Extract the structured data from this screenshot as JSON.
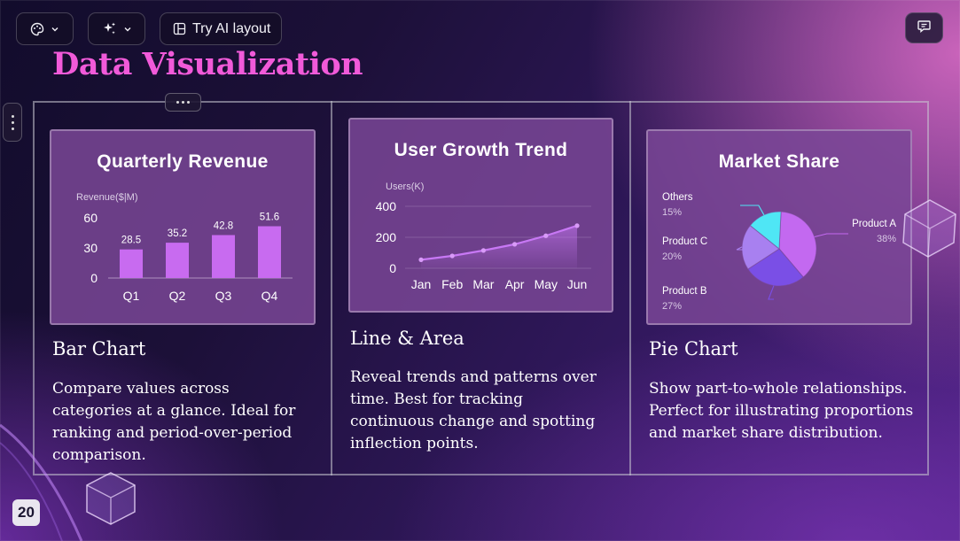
{
  "toolbar": {
    "theme_icon": "palette-icon",
    "ai_icon": "sparkles-icon",
    "layout_label": "Try AI layout",
    "layout_icon": "layout-icon"
  },
  "comment_icon": "comment-icon",
  "slide": {
    "title": "Data Visualization",
    "page_number": "20",
    "columns": [
      {
        "heading": "Bar Chart",
        "text": "Compare values across categories at a glance. Ideal for ranking and period-over-period comparison."
      },
      {
        "heading": "Line & Area",
        "text": "Reveal trends and patterns over time. Best for tracking continuous change and spotting inflection points."
      },
      {
        "heading": "Pie Chart",
        "text": "Show part-to-whole relationships. Perfect for illustrating proportions and market share distribution."
      }
    ]
  },
  "colors": {
    "title": "#f15ad9",
    "bar": "#c86bf0",
    "line": "#c878f5",
    "pie": [
      "#c369f0",
      "#7a4fe6",
      "#a880f0",
      "#4fe6f5"
    ]
  },
  "chart_data": [
    {
      "type": "bar",
      "title": "Quarterly Revenue",
      "ylabel": "Revenue($|M)",
      "categories": [
        "Q1",
        "Q2",
        "Q3",
        "Q4"
      ],
      "values": [
        28.5,
        35.2,
        42.8,
        51.6
      ],
      "yticks": [
        0,
        30,
        60
      ],
      "ylim": [
        0,
        60
      ]
    },
    {
      "type": "area",
      "title": "User Growth Trend",
      "ylabel": "Users(K)",
      "categories": [
        "Jan",
        "Feb",
        "Mar",
        "Apr",
        "May",
        "Jun"
      ],
      "values": [
        55,
        80,
        115,
        155,
        210,
        275
      ],
      "yticks": [
        0,
        200,
        400
      ],
      "ylim": [
        0,
        400
      ]
    },
    {
      "type": "pie",
      "title": "Market Share",
      "slices": [
        {
          "name": "Product A",
          "value": 38,
          "label": "38%"
        },
        {
          "name": "Product B",
          "value": 27,
          "label": "27%"
        },
        {
          "name": "Product C",
          "value": 20,
          "label": "20%"
        },
        {
          "name": "Others",
          "value": 15,
          "label": "15%"
        }
      ]
    }
  ]
}
